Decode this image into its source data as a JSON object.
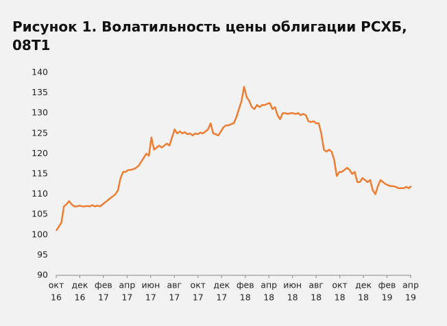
{
  "chart_data": {
    "type": "line",
    "title": [
      "Рисунок 1. Волатильность цены облигации РСХБ,",
      "08T1"
    ],
    "xticks": [
      [
        "окт",
        "16"
      ],
      [
        "дек",
        "16"
      ],
      [
        "фев",
        "17"
      ],
      [
        "апр",
        "17"
      ],
      [
        "июн",
        "17"
      ],
      [
        "авг",
        "17"
      ],
      [
        "окт",
        "17"
      ],
      [
        "дек",
        "17"
      ],
      [
        "фев",
        "18"
      ],
      [
        "апр",
        "18"
      ],
      [
        "июн",
        "18"
      ],
      [
        "авг",
        "18"
      ],
      [
        "окт",
        "18"
      ],
      [
        "дек",
        "18"
      ],
      [
        "фев",
        "19"
      ],
      [
        "апр",
        "19"
      ]
    ],
    "ylim": [
      90,
      140
    ],
    "yticks": [
      90,
      95,
      100,
      105,
      110,
      115,
      120,
      125,
      130,
      135,
      140
    ],
    "grid": false,
    "series": [
      {
        "color": "#ef7d31",
        "values": [
          101,
          102,
          103,
          107,
          107.5,
          108.3,
          107.5,
          107,
          107,
          107.2,
          107,
          107,
          107.1,
          107,
          107.3,
          107,
          107.2,
          107,
          107.5,
          108,
          108.5,
          109,
          109.5,
          110,
          111,
          114,
          115.5,
          115.5,
          116,
          116,
          116.2,
          116.5,
          117,
          118,
          119,
          120,
          119.5,
          124,
          121,
          121.5,
          122,
          121.5,
          122,
          122.5,
          122,
          124,
          126,
          125,
          125.5,
          125,
          125.3,
          124.8,
          125,
          124.5,
          125,
          124.8,
          125.2,
          125,
          125.5,
          126,
          127.5,
          125,
          124.8,
          124.5,
          125.5,
          126.5,
          127,
          127,
          127.3,
          127.5,
          129,
          131,
          133,
          136.5,
          134,
          133,
          131.5,
          131,
          132,
          131.5,
          132,
          132,
          132.3,
          132.5,
          131,
          131.5,
          129.5,
          128.5,
          130,
          130,
          129.8,
          130,
          130,
          129.8,
          130,
          129.5,
          129.8,
          129.5,
          128,
          127.8,
          128,
          127.5,
          127.5,
          125,
          121,
          120.5,
          121,
          120.5,
          118.5,
          114.5,
          115.5,
          115.5,
          116,
          116.5,
          116,
          115,
          115.5,
          113,
          113,
          114,
          113.5,
          113,
          113.5,
          111,
          110,
          112,
          113.5,
          113,
          112.5,
          112.2,
          112,
          112,
          111.8,
          111.5,
          111.5,
          111.5,
          111.8,
          111.5,
          112
        ]
      }
    ]
  }
}
